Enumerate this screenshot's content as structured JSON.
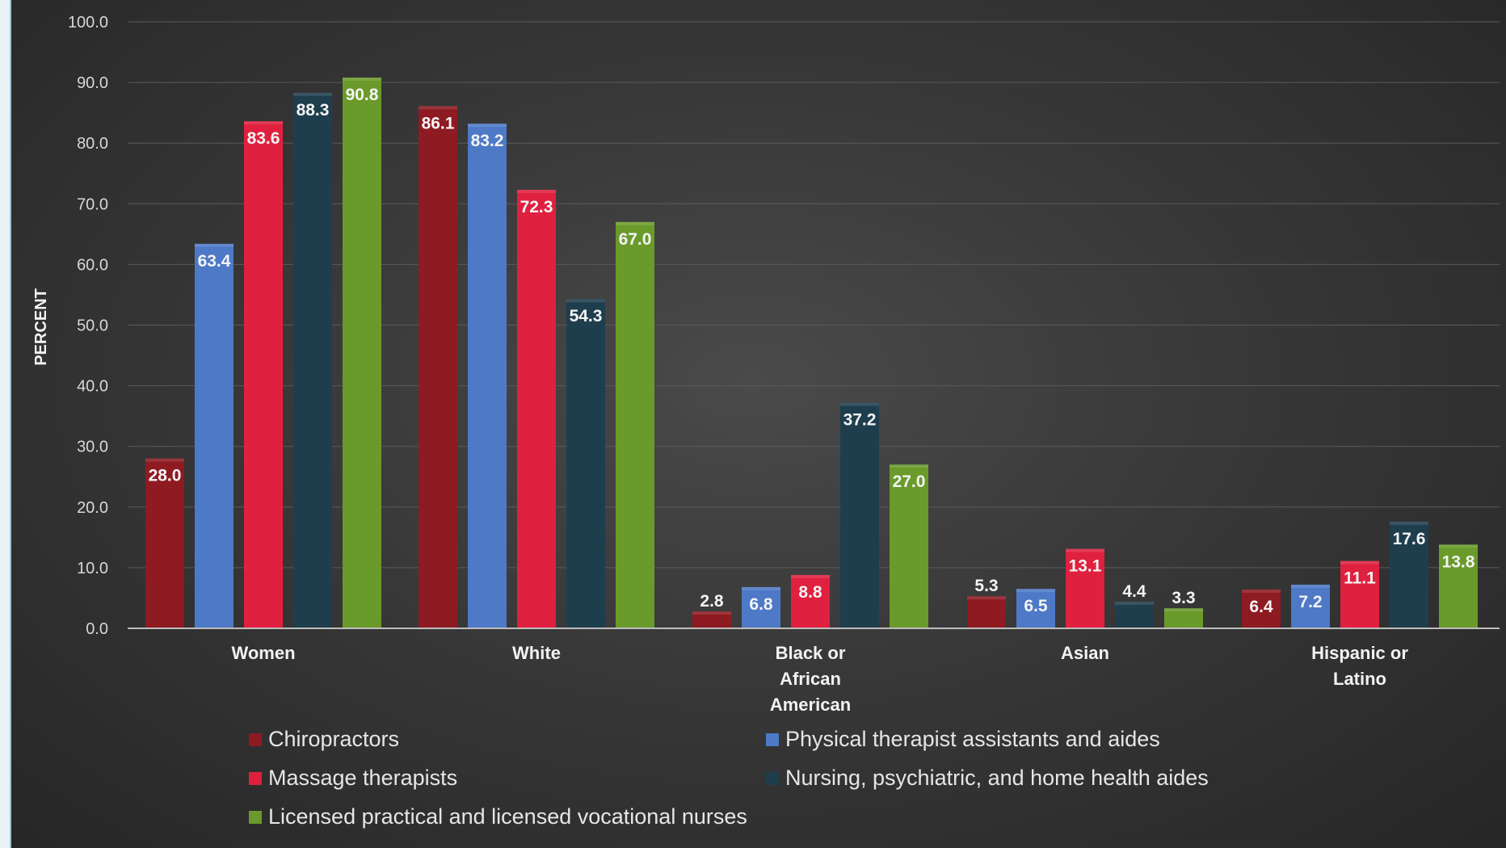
{
  "chart_data": {
    "type": "bar",
    "title": "",
    "xlabel": "",
    "ylabel": "PERCENT",
    "ylim": [
      0,
      100
    ],
    "yticks": [
      "0.0",
      "10.0",
      "20.0",
      "30.0",
      "40.0",
      "50.0",
      "60.0",
      "70.0",
      "80.0",
      "90.0",
      "100.0"
    ],
    "grid": true,
    "legend_position": "bottom",
    "categories": [
      "Women",
      "White",
      "Black or African American",
      "Asian",
      "Hispanic or Latino"
    ],
    "series": [
      {
        "name": "Chiropractors",
        "color": "#8e1a22",
        "values": [
          28.0,
          86.1,
          2.8,
          5.3,
          6.4
        ]
      },
      {
        "name": "Physical therapist assistants and aides",
        "color": "#4d79c7",
        "values": [
          63.4,
          83.2,
          6.8,
          6.5,
          7.2
        ]
      },
      {
        "name": "Massage therapists",
        "color": "#e0203f",
        "values": [
          83.6,
          72.3,
          8.8,
          13.1,
          11.1
        ]
      },
      {
        "name": "Nursing, psychiatric, and home health aides",
        "color": "#1f3e4d",
        "values": [
          88.3,
          54.3,
          37.2,
          4.4,
          17.6
        ]
      },
      {
        "name": "Licensed practical and licensed vocational nurses",
        "color": "#6a9a2a",
        "values": [
          90.8,
          67.0,
          27.0,
          3.3,
          13.8
        ]
      }
    ],
    "legend_layout": [
      {
        "series": 0,
        "column": "left"
      },
      {
        "series": 1,
        "column": "right"
      },
      {
        "series": 2,
        "column": "left"
      },
      {
        "series": 3,
        "column": "right"
      },
      {
        "series": 4,
        "column": "left"
      }
    ]
  }
}
